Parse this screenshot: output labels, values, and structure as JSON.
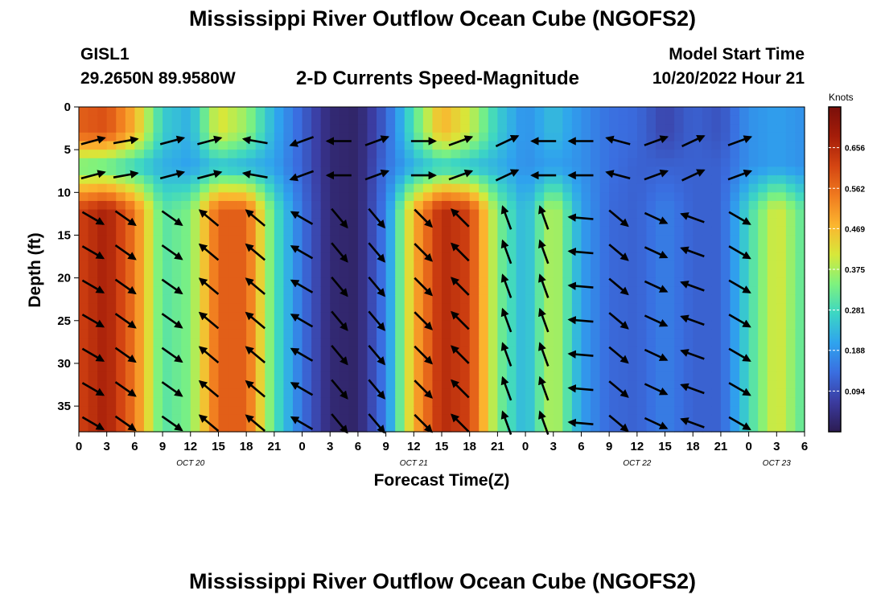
{
  "header": {
    "title": "Mississippi River Outflow Ocean Cube (NGOFS2)",
    "station": "GISL1",
    "coords": "29.2650N  89.9580W",
    "subtitle": "2-D Currents Speed-Magnitude",
    "start_label": "Model Start Time",
    "start_value": "10/20/2022 Hour 21"
  },
  "footer": {
    "title": "Mississippi River Outflow Ocean Cube (NGOFS2)"
  },
  "chart_data": {
    "type": "heatmap",
    "title": "2-D Currents Speed-Magnitude",
    "xlabel": "Forecast Time(Z)",
    "ylabel": "Depth (ft)",
    "x_range_hours": [
      0,
      78
    ],
    "y_range_ft": [
      0,
      38
    ],
    "y_inverted": true,
    "xtick_labels": [
      "0",
      "3",
      "6",
      "9",
      "12",
      "15",
      "18",
      "21",
      "0",
      "3",
      "6",
      "9",
      "12",
      "15",
      "18",
      "21",
      "0",
      "3",
      "6",
      "9",
      "12",
      "15",
      "18",
      "21",
      "0",
      "3",
      "6"
    ],
    "date_labels": [
      {
        "label": "OCT 20",
        "hour": 12
      },
      {
        "label": "OCT 21",
        "hour": 36
      },
      {
        "label": "OCT 22",
        "hour": 60
      },
      {
        "label": "OCT 23",
        "hour": 75
      }
    ],
    "yticks": [
      0,
      5,
      10,
      15,
      20,
      25,
      30,
      35
    ],
    "colorbar": {
      "title": "Knots",
      "ticks": [
        0.094,
        0.188,
        0.281,
        0.375,
        0.469,
        0.562,
        0.656
      ],
      "range": [
        0,
        0.75
      ],
      "colors": [
        "#2c1c52",
        "#3b3b9f",
        "#3a6ee0",
        "#2fa3ee",
        "#3cd6c4",
        "#7ef27e",
        "#d7e83a",
        "#fbb52f",
        "#f07a1f",
        "#d44512",
        "#a51d09",
        "#7a0f0a"
      ]
    },
    "speed_profile": [
      {
        "hour": 0,
        "surface": 0.58,
        "upper": 0.32,
        "deep": 0.62
      },
      {
        "hour": 3,
        "surface": 0.6,
        "upper": 0.3,
        "deep": 0.68
      },
      {
        "hour": 6,
        "surface": 0.48,
        "upper": 0.26,
        "deep": 0.55
      },
      {
        "hour": 9,
        "surface": 0.26,
        "upper": 0.22,
        "deep": 0.3
      },
      {
        "hour": 12,
        "surface": 0.22,
        "upper": 0.2,
        "deep": 0.34
      },
      {
        "hour": 15,
        "surface": 0.42,
        "upper": 0.24,
        "deep": 0.58
      },
      {
        "hour": 18,
        "surface": 0.36,
        "upper": 0.22,
        "deep": 0.58
      },
      {
        "hour": 21,
        "surface": 0.22,
        "upper": 0.2,
        "deep": 0.3
      },
      {
        "hour": 24,
        "surface": 0.12,
        "upper": 0.12,
        "deep": 0.14
      },
      {
        "hour": 27,
        "surface": 0.03,
        "upper": 0.03,
        "deep": 0.03
      },
      {
        "hour": 30,
        "surface": 0.02,
        "upper": 0.02,
        "deep": 0.02
      },
      {
        "hour": 33,
        "surface": 0.12,
        "upper": 0.14,
        "deep": 0.16
      },
      {
        "hour": 36,
        "surface": 0.3,
        "upper": 0.22,
        "deep": 0.48
      },
      {
        "hour": 39,
        "surface": 0.48,
        "upper": 0.26,
        "deep": 0.66
      },
      {
        "hour": 42,
        "surface": 0.4,
        "upper": 0.24,
        "deep": 0.62
      },
      {
        "hour": 45,
        "surface": 0.26,
        "upper": 0.22,
        "deep": 0.34
      },
      {
        "hour": 48,
        "surface": 0.18,
        "upper": 0.18,
        "deep": 0.22
      },
      {
        "hour": 51,
        "surface": 0.24,
        "upper": 0.2,
        "deep": 0.4
      },
      {
        "hour": 54,
        "surface": 0.18,
        "upper": 0.18,
        "deep": 0.2
      },
      {
        "hour": 57,
        "surface": 0.14,
        "upper": 0.14,
        "deep": 0.13
      },
      {
        "hour": 60,
        "surface": 0.13,
        "upper": 0.12,
        "deep": 0.12
      },
      {
        "hour": 63,
        "surface": 0.08,
        "upper": 0.12,
        "deep": 0.16
      },
      {
        "hour": 66,
        "surface": 0.12,
        "upper": 0.12,
        "deep": 0.12
      },
      {
        "hour": 69,
        "surface": 0.1,
        "upper": 0.12,
        "deep": 0.12
      },
      {
        "hour": 72,
        "surface": 0.18,
        "upper": 0.18,
        "deep": 0.28
      },
      {
        "hour": 75,
        "surface": 0.2,
        "upper": 0.2,
        "deep": 0.42
      },
      {
        "hour": 78,
        "surface": 0.18,
        "upper": 0.18,
        "deep": 0.3
      }
    ],
    "vector_rows_ft": [
      4,
      8,
      13,
      17,
      21,
      25,
      29,
      33,
      37
    ],
    "vector_columns": [
      {
        "hour": 1.5,
        "surface_dir_deg": 15,
        "deep_dir_deg": -30
      },
      {
        "hour": 5,
        "surface_dir_deg": 10,
        "deep_dir_deg": -35
      },
      {
        "hour": 10,
        "surface_dir_deg": 15,
        "deep_dir_deg": -35
      },
      {
        "hour": 14,
        "surface_dir_deg": 15,
        "deep_dir_deg": 140
      },
      {
        "hour": 19,
        "surface_dir_deg": 170,
        "deep_dir_deg": 140
      },
      {
        "hour": 24,
        "surface_dir_deg": 200,
        "deep_dir_deg": 150
      },
      {
        "hour": 28,
        "surface_dir_deg": 180,
        "deep_dir_deg": -50
      },
      {
        "hour": 32,
        "surface_dir_deg": 20,
        "deep_dir_deg": -50
      },
      {
        "hour": 37,
        "surface_dir_deg": 0,
        "deep_dir_deg": -45
      },
      {
        "hour": 41,
        "surface_dir_deg": 20,
        "deep_dir_deg": 135
      },
      {
        "hour": 46,
        "surface_dir_deg": 25,
        "deep_dir_deg": 110
      },
      {
        "hour": 50,
        "surface_dir_deg": 180,
        "deep_dir_deg": 110
      },
      {
        "hour": 54,
        "surface_dir_deg": 180,
        "deep_dir_deg": 175
      },
      {
        "hour": 58,
        "surface_dir_deg": 165,
        "deep_dir_deg": -40
      },
      {
        "hour": 62,
        "surface_dir_deg": 20,
        "deep_dir_deg": -25
      },
      {
        "hour": 66,
        "surface_dir_deg": 25,
        "deep_dir_deg": 160
      },
      {
        "hour": 71,
        "surface_dir_deg": 20,
        "deep_dir_deg": -30
      }
    ]
  }
}
